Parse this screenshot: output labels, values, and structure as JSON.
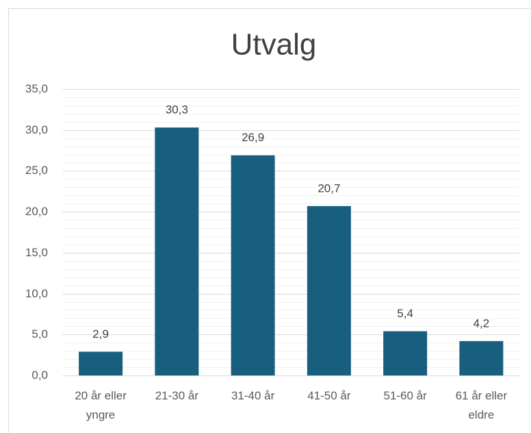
{
  "chart_data": {
    "type": "bar",
    "title": "Utvalg",
    "categories": [
      "20 år eller yngre",
      "21-30 år",
      "31-40 år",
      "41-50 år",
      "51-60 år",
      "61 år eller eldre"
    ],
    "values": [
      2.9,
      30.3,
      26.9,
      20.7,
      5.4,
      4.2
    ],
    "value_labels": [
      "2,9",
      "30,3",
      "26,9",
      "20,7",
      "5,4",
      "4,2"
    ],
    "color": "#175e7f",
    "ylim": [
      0,
      35
    ],
    "yticks": [
      {
        "value": 0,
        "label": "0,0"
      },
      {
        "value": 5,
        "label": "5,0"
      },
      {
        "value": 10,
        "label": "10,0"
      },
      {
        "value": 15,
        "label": "15,0"
      },
      {
        "value": 20,
        "label": "20,0"
      },
      {
        "value": 25,
        "label": "25,0"
      },
      {
        "value": 30,
        "label": "30,0"
      },
      {
        "value": 35,
        "label": "35,0"
      }
    ],
    "minor_yticks": [
      1,
      2,
      3,
      4,
      6,
      7,
      8,
      9,
      11,
      12,
      13,
      14,
      16,
      17,
      18,
      19,
      21,
      22,
      23,
      24,
      26,
      27,
      28,
      29,
      31,
      32,
      33,
      34
    ],
    "grid": true
  }
}
